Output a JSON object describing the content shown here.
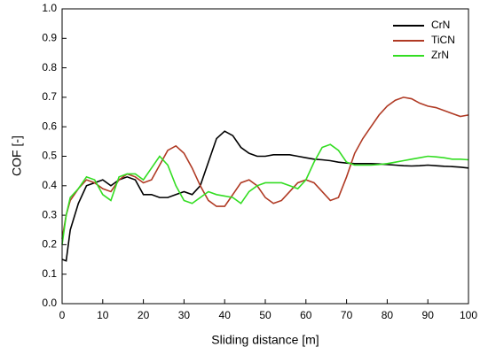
{
  "chart_data": {
    "type": "line",
    "xlabel": "Sliding distance [m]",
    "ylabel": "COF [-]",
    "x": [
      0,
      1,
      2,
      4,
      6,
      8,
      10,
      12,
      14,
      16,
      18,
      20,
      22,
      24,
      26,
      28,
      30,
      32,
      34,
      36,
      38,
      40,
      42,
      44,
      46,
      48,
      50,
      52,
      54,
      56,
      58,
      60,
      62,
      64,
      66,
      68,
      70,
      72,
      74,
      76,
      78,
      80,
      82,
      84,
      86,
      88,
      90,
      92,
      94,
      96,
      98,
      100
    ],
    "series": [
      {
        "name": "CrN",
        "color": "#000000",
        "values": [
          0.15,
          0.145,
          0.25,
          0.34,
          0.4,
          0.41,
          0.42,
          0.4,
          0.42,
          0.43,
          0.42,
          0.37,
          0.37,
          0.36,
          0.36,
          0.37,
          0.38,
          0.37,
          0.4,
          0.48,
          0.56,
          0.585,
          0.57,
          0.53,
          0.51,
          0.5,
          0.5,
          0.505,
          0.505,
          0.505,
          0.5,
          0.495,
          0.49,
          0.488,
          0.485,
          0.48,
          0.477,
          0.475,
          0.475,
          0.475,
          0.474,
          0.472,
          0.47,
          0.468,
          0.467,
          0.468,
          0.47,
          0.468,
          0.466,
          0.465,
          0.463,
          0.46
        ]
      },
      {
        "name": "TiCN",
        "color": "#b03a24",
        "values": [
          0.22,
          0.3,
          0.35,
          0.39,
          0.42,
          0.41,
          0.39,
          0.38,
          0.42,
          0.44,
          0.43,
          0.41,
          0.42,
          0.47,
          0.52,
          0.535,
          0.51,
          0.46,
          0.4,
          0.35,
          0.33,
          0.33,
          0.37,
          0.41,
          0.42,
          0.4,
          0.36,
          0.34,
          0.35,
          0.38,
          0.41,
          0.42,
          0.41,
          0.38,
          0.35,
          0.36,
          0.43,
          0.51,
          0.56,
          0.6,
          0.64,
          0.67,
          0.69,
          0.7,
          0.695,
          0.68,
          0.67,
          0.665,
          0.655,
          0.645,
          0.635,
          0.64
        ]
      },
      {
        "name": "ZrN",
        "color": "#33dd22",
        "values": [
          0.2,
          0.3,
          0.36,
          0.39,
          0.43,
          0.42,
          0.37,
          0.35,
          0.43,
          0.44,
          0.44,
          0.42,
          0.46,
          0.5,
          0.47,
          0.4,
          0.35,
          0.34,
          0.36,
          0.38,
          0.37,
          0.365,
          0.36,
          0.34,
          0.38,
          0.4,
          0.41,
          0.41,
          0.41,
          0.4,
          0.39,
          0.42,
          0.48,
          0.53,
          0.54,
          0.52,
          0.48,
          0.47,
          0.47,
          0.47,
          0.472,
          0.475,
          0.48,
          0.485,
          0.49,
          0.495,
          0.5,
          0.498,
          0.495,
          0.49,
          0.49,
          0.488
        ]
      }
    ],
    "xlim": [
      0,
      100
    ],
    "xticks": [
      0,
      10,
      20,
      30,
      40,
      50,
      60,
      70,
      80,
      90,
      100
    ],
    "ylim": [
      0,
      1
    ],
    "yticks": [
      {
        "value": 0,
        "label": "0.0"
      },
      0.1,
      0.2,
      0.3,
      0.4,
      0.5,
      0.6,
      0.7,
      0.8,
      0.9,
      {
        "value": 1,
        "label": "1.0"
      }
    ],
    "legend": "top-right",
    "grid": false
  }
}
